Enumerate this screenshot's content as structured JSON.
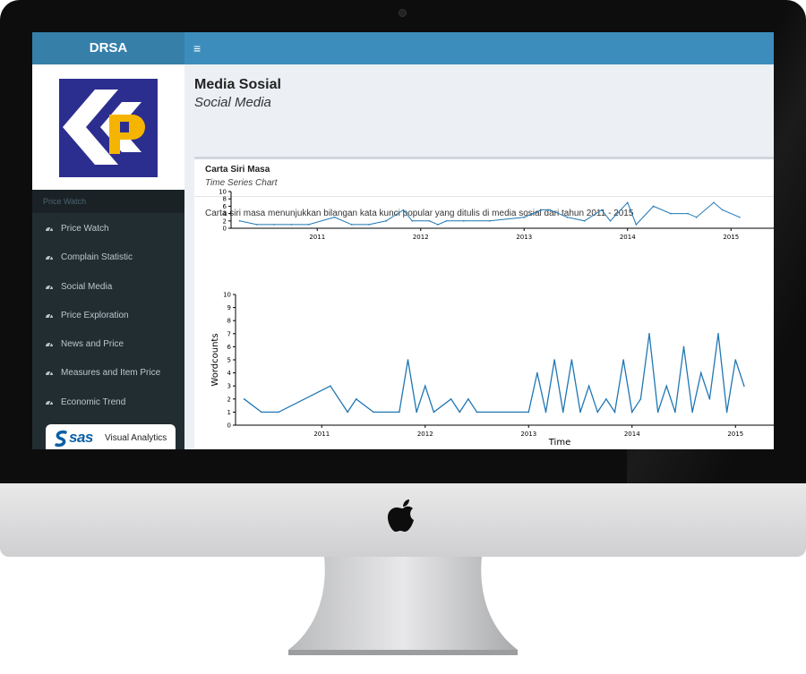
{
  "header": {
    "brand": "DRSA",
    "menu_icon": "hamburger-icon",
    "menu_glyph": "≡"
  },
  "sidebar": {
    "section_header": "Price Watch",
    "items": [
      {
        "label": "Price Watch",
        "icon": "dashboard-icon"
      },
      {
        "label": "Complain Statistic",
        "icon": "dashboard-icon"
      },
      {
        "label": "Social Media",
        "icon": "dashboard-icon"
      },
      {
        "label": "Price Exploration",
        "icon": "dashboard-icon"
      },
      {
        "label": "News and Price",
        "icon": "dashboard-icon"
      },
      {
        "label": "Measures and Item Price",
        "icon": "dashboard-icon"
      },
      {
        "label": "Economic Trend",
        "icon": "dashboard-icon"
      }
    ],
    "badge": {
      "brand": "sas",
      "product": "Visual Analytics"
    }
  },
  "main": {
    "title": "Media Sosial",
    "subtitle": "Social Media",
    "box": {
      "title": "Carta Siri Masa",
      "subtitle": "Time Series Chart",
      "description": "Carta siri masa menunjukkan bilangan kata kunci popular yang ditulis di media sosial dari tahun 2011 - 2015"
    }
  },
  "colors": {
    "topbar": "#3c8dbc",
    "brand_bg": "#367fa9",
    "sidebar": "#222d32",
    "series": "#1f77b4",
    "content_bg": "#ecf0f5"
  },
  "chart_data": [
    {
      "type": "line",
      "role": "overview",
      "x_ticks": [
        "2011",
        "2012",
        "2013",
        "2014",
        "2015"
      ],
      "y_ticks": [
        "0",
        "2",
        "4",
        "6",
        "8",
        "10"
      ],
      "ylim": [
        0,
        10
      ],
      "xlim": [
        "2010-03",
        "2015-03"
      ],
      "series": [
        {
          "values": [
            [
              "2010-04",
              2
            ],
            [
              "2010-06",
              1
            ],
            [
              "2010-08",
              1
            ],
            [
              "2010-10",
              1
            ],
            [
              "2010-12",
              1
            ],
            [
              "2011-03",
              3
            ],
            [
              "2011-05",
              1
            ],
            [
              "2011-07",
              1
            ],
            [
              "2011-09",
              2
            ],
            [
              "2011-11",
              5
            ],
            [
              "2011-12",
              2
            ],
            [
              "2012-02",
              2
            ],
            [
              "2012-03",
              1
            ],
            [
              "2012-04",
              2
            ],
            [
              "2012-06",
              2
            ],
            [
              "2012-09",
              2
            ],
            [
              "2013-01",
              3
            ],
            [
              "2013-03",
              5
            ],
            [
              "2013-04",
              5
            ],
            [
              "2013-06",
              3
            ],
            [
              "2013-08",
              2
            ],
            [
              "2013-10",
              5
            ],
            [
              "2013-11",
              2
            ],
            [
              "2014-01",
              7
            ],
            [
              "2014-02",
              1
            ],
            [
              "2014-04",
              6
            ],
            [
              "2014-06",
              4
            ],
            [
              "2014-08",
              4
            ],
            [
              "2014-09",
              3
            ],
            [
              "2014-11",
              7
            ],
            [
              "2014-12",
              5
            ],
            [
              "2015-02",
              3
            ]
          ]
        }
      ]
    },
    {
      "type": "line",
      "role": "main",
      "xlabel": "Time",
      "ylabel": "Wordcounts",
      "x_ticks": [
        "2011",
        "2012",
        "2013",
        "2014",
        "2015"
      ],
      "y_ticks": [
        "0",
        "1",
        "2",
        "3",
        "4",
        "5",
        "6",
        "7",
        "8",
        "9",
        "10"
      ],
      "ylim": [
        0,
        10
      ],
      "xlim": [
        "2010-03",
        "2015-03"
      ],
      "series": [
        {
          "values": [
            [
              "2010-04",
              2
            ],
            [
              "2010-06",
              1
            ],
            [
              "2010-08",
              1
            ],
            [
              "2011-02",
              3
            ],
            [
              "2011-04",
              1
            ],
            [
              "2011-05",
              2
            ],
            [
              "2011-07",
              1
            ],
            [
              "2011-10",
              1
            ],
            [
              "2011-11",
              5
            ],
            [
              "2011-12",
              1
            ],
            [
              "2012-01",
              3
            ],
            [
              "2012-02",
              1
            ],
            [
              "2012-04",
              2
            ],
            [
              "2012-05",
              1
            ],
            [
              "2012-06",
              2
            ],
            [
              "2012-07",
              1
            ],
            [
              "2013-01",
              1
            ],
            [
              "2013-02",
              4
            ],
            [
              "2013-03",
              1
            ],
            [
              "2013-04",
              5
            ],
            [
              "2013-05",
              1
            ],
            [
              "2013-06",
              5
            ],
            [
              "2013-07",
              1
            ],
            [
              "2013-08",
              3
            ],
            [
              "2013-09",
              1
            ],
            [
              "2013-10",
              2
            ],
            [
              "2013-11",
              1
            ],
            [
              "2013-12",
              5
            ],
            [
              "2014-01",
              1
            ],
            [
              "2014-02",
              2
            ],
            [
              "2014-03",
              7
            ],
            [
              "2014-04",
              1
            ],
            [
              "2014-05",
              3
            ],
            [
              "2014-06",
              1
            ],
            [
              "2014-07",
              6
            ],
            [
              "2014-08",
              1
            ],
            [
              "2014-09",
              4
            ],
            [
              "2014-10",
              2
            ],
            [
              "2014-11",
              7
            ],
            [
              "2014-12",
              1
            ],
            [
              "2015-01",
              5
            ],
            [
              "2015-02",
              3
            ]
          ]
        }
      ]
    }
  ]
}
